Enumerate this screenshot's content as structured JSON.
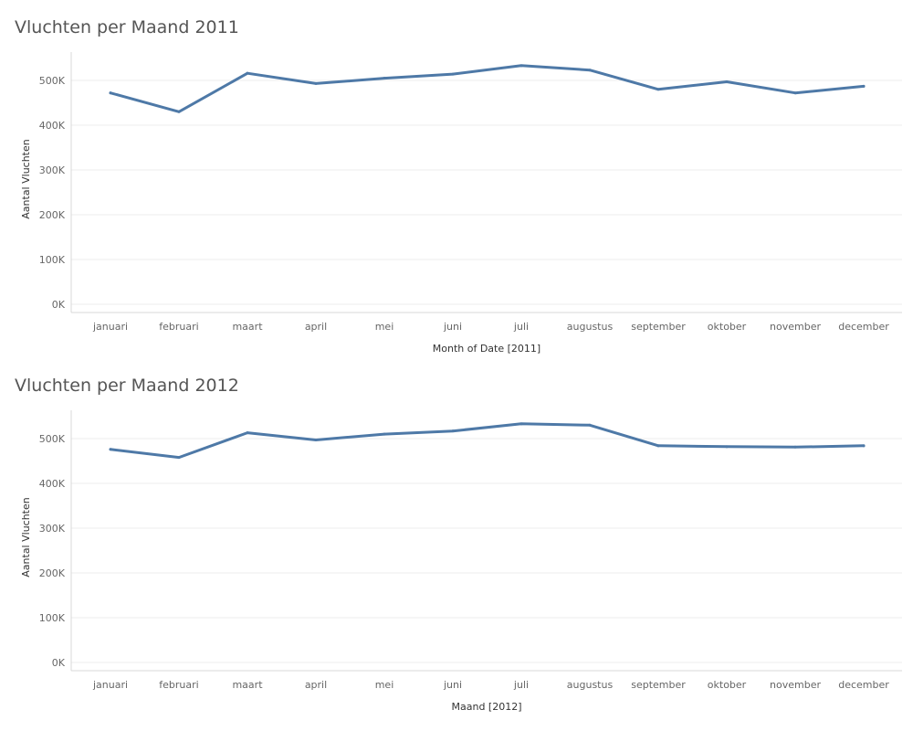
{
  "colors": {
    "line": "#4e79a7",
    "gridline": "#ececec",
    "axis": "#d9d9d9"
  },
  "chart_data": [
    {
      "type": "line",
      "title": "Vluchten per Maand 2011",
      "xlabel": "Month of Date [2011]",
      "ylabel": "Aantal Vluchten",
      "categories": [
        "januari",
        "februari",
        "maart",
        "april",
        "mei",
        "juni",
        "juli",
        "augustus",
        "september",
        "oktober",
        "november",
        "december"
      ],
      "values": [
        472000,
        430000,
        516000,
        493000,
        505000,
        514000,
        533000,
        523000,
        480000,
        497000,
        472000,
        487000
      ],
      "ylim": [
        0,
        560000
      ],
      "yticks": [
        0,
        100000,
        200000,
        300000,
        400000,
        500000
      ],
      "ytick_labels": [
        "0K",
        "100K",
        "200K",
        "300K",
        "400K",
        "500K"
      ],
      "grid": true,
      "legend": "none"
    },
    {
      "type": "line",
      "title": "Vluchten per Maand 2012",
      "xlabel": "Maand [2012]",
      "ylabel": "Aantal Vluchten",
      "categories": [
        "januari",
        "februari",
        "maart",
        "april",
        "mei",
        "juni",
        "juli",
        "augustus",
        "september",
        "oktober",
        "november",
        "december"
      ],
      "values": [
        476000,
        458000,
        513000,
        497000,
        510000,
        517000,
        533000,
        530000,
        484000,
        482000,
        481000,
        484000
      ],
      "ylim": [
        0,
        560000
      ],
      "yticks": [
        0,
        100000,
        200000,
        300000,
        400000,
        500000
      ],
      "ytick_labels": [
        "0K",
        "100K",
        "200K",
        "300K",
        "400K",
        "500K"
      ],
      "grid": true,
      "legend": "none"
    }
  ]
}
